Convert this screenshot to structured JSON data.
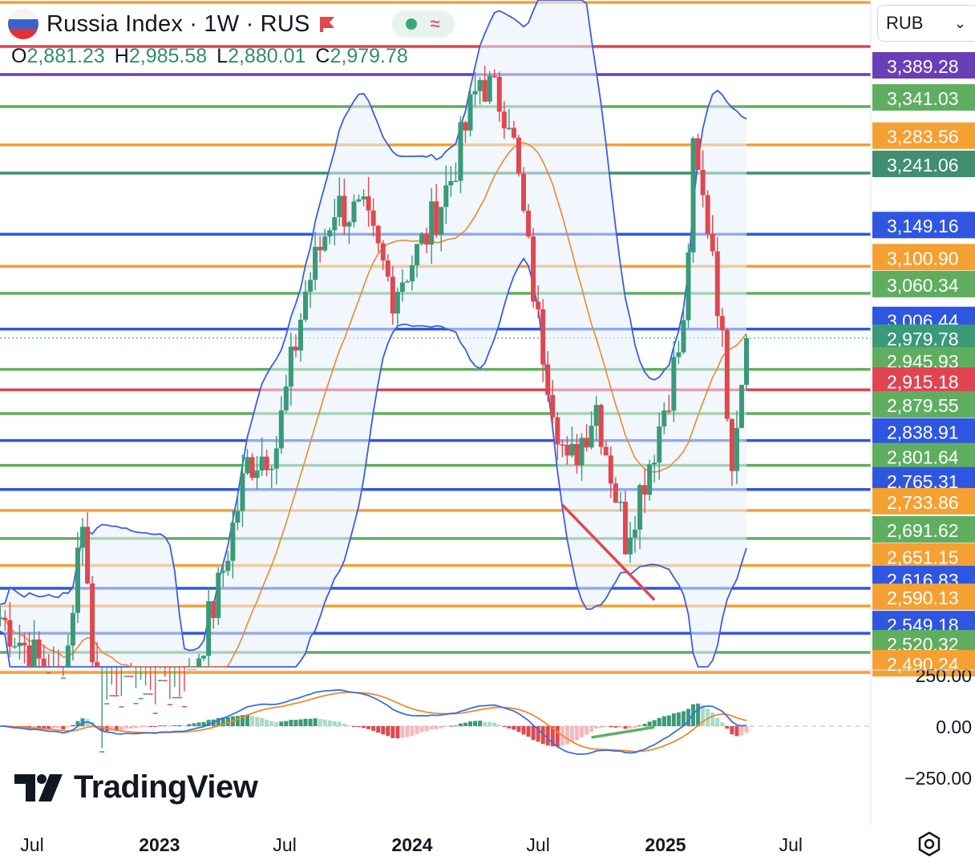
{
  "header": {
    "title": "Russia Index · 1W · RUS",
    "ohlc": [
      {
        "key": "O",
        "value": "2,881.23"
      },
      {
        "key": "H",
        "value": "2,985.58"
      },
      {
        "key": "L",
        "value": "2,880.01"
      },
      {
        "key": "C",
        "value": "2,979.78"
      }
    ],
    "currency": "RUB"
  },
  "colors": {
    "up": "#3a9a78",
    "down": "#e0484f",
    "bb": "#3b5ee0",
    "ma": "#f0882e",
    "orange_line": "#f5a033",
    "green_line": "#5fae5f",
    "blue_line": "#2f56e0",
    "red_line": "#e04450",
    "purple_line": "#6a3fb5",
    "macd_line": "#3b6fe8",
    "signal_line": "#f08a2a"
  },
  "icons": {
    "flag": "russia-flag-icon",
    "marker": "red-flag-icon",
    "settings": "gear-icon"
  },
  "logo_text": "TradingView",
  "chart_data": {
    "type": "candlestick",
    "price_axis": {
      "labels": [
        {
          "value": 3389.28,
          "text": "3,389.28",
          "color": "#6a3fb5"
        },
        {
          "value": 3341.03,
          "text": "3,341.03",
          "color": "#5fae5f"
        },
        {
          "value": 3283.56,
          "text": "3,283.56",
          "color": "#f5a033"
        },
        {
          "value": 3241.06,
          "text": "3,241.06",
          "color": "#3f8f70"
        },
        {
          "value": 3149.16,
          "text": "3,149.16",
          "color": "#2f56e0"
        },
        {
          "value": 3100.9,
          "text": "3,100.90",
          "color": "#f5a033"
        },
        {
          "value": 3060.34,
          "text": "3,060.34",
          "color": "#5fae5f"
        },
        {
          "value": 3006.44,
          "text": "3,006.44",
          "color": "#2f56e0"
        },
        {
          "value": 2979.78,
          "text": "2,979.78",
          "color": "#3a9a78"
        },
        {
          "value": 2945.93,
          "text": "2,945.93",
          "color": "#5fae5f"
        },
        {
          "value": 2915.18,
          "text": "2,915.18",
          "color": "#e04450"
        },
        {
          "value": 2879.55,
          "text": "2,879.55",
          "color": "#5fae5f"
        },
        {
          "value": 2838.91,
          "text": "2,838.91",
          "color": "#2f56e0"
        },
        {
          "value": 2801.64,
          "text": "2,801.64",
          "color": "#5fae5f"
        },
        {
          "value": 2765.31,
          "text": "2,765.31",
          "color": "#2f56e0"
        },
        {
          "value": 2733.86,
          "text": "2,733.86",
          "color": "#f5a033"
        },
        {
          "value": 2691.62,
          "text": "2,691.62",
          "color": "#5fae5f"
        },
        {
          "value": 2651.15,
          "text": "2,651.15",
          "color": "#f5a033"
        },
        {
          "value": 2616.83,
          "text": "2,616.83",
          "color": "#2f56e0"
        },
        {
          "value": 2590.13,
          "text": "2,590.13",
          "color": "#f5a033"
        },
        {
          "value": 2549.18,
          "text": "2,549.18",
          "color": "#2f56e0"
        },
        {
          "value": 2520.32,
          "text": "2,520.32",
          "color": "#5fae5f"
        },
        {
          "value": 2490.24,
          "text": "2,490.24",
          "color": "#f5a033"
        }
      ]
    },
    "macd_axis_labels": [
      "250.00",
      "0.00",
      "−250.00"
    ],
    "macd_range": [
      -250,
      250
    ],
    "time_labels": [
      {
        "text": "Jul",
        "bold": false,
        "date": "2022-07-01"
      },
      {
        "text": "2023",
        "bold": true,
        "date": "2023-01-01"
      },
      {
        "text": "Jul",
        "bold": false,
        "date": "2023-07-01"
      },
      {
        "text": "2024",
        "bold": true,
        "date": "2024-01-01"
      },
      {
        "text": "Jul",
        "bold": false,
        "date": "2024-07-01"
      },
      {
        "text": "2025",
        "bold": true,
        "date": "2025-01-01"
      },
      {
        "text": "Jul",
        "bold": false,
        "date": "2025-07-01"
      }
    ],
    "last_close": 2979.78,
    "series_close": [
      {
        "date": "2022-05-16",
        "close": 2560
      },
      {
        "date": "2022-07-04",
        "close": 2500
      },
      {
        "date": "2022-08-15",
        "close": 2450
      },
      {
        "date": "2022-09-12",
        "close": 2720
      },
      {
        "date": "2022-10-03",
        "close": 2380
      },
      {
        "date": "2022-11-14",
        "close": 2440
      },
      {
        "date": "2022-12-26",
        "close": 2430
      },
      {
        "date": "2023-02-06",
        "close": 2440
      },
      {
        "date": "2023-03-27",
        "close": 2600
      },
      {
        "date": "2023-05-08",
        "close": 2790
      },
      {
        "date": "2023-06-19",
        "close": 2820
      },
      {
        "date": "2023-07-31",
        "close": 3050
      },
      {
        "date": "2023-09-11",
        "close": 3180
      },
      {
        "date": "2023-10-23",
        "close": 3160
      },
      {
        "date": "2023-12-04",
        "close": 3050
      },
      {
        "date": "2024-01-15",
        "close": 3120
      },
      {
        "date": "2024-02-26",
        "close": 3220
      },
      {
        "date": "2024-04-08",
        "close": 3370
      },
      {
        "date": "2024-05-20",
        "close": 3320
      },
      {
        "date": "2024-07-01",
        "close": 3000
      },
      {
        "date": "2024-08-12",
        "close": 2780
      },
      {
        "date": "2024-09-23",
        "close": 2880
      },
      {
        "date": "2024-11-04",
        "close": 2680
      },
      {
        "date": "2024-12-16",
        "close": 2820
      },
      {
        "date": "2025-01-27",
        "close": 2990
      },
      {
        "date": "2025-02-10",
        "close": 3250
      },
      {
        "date": "2025-03-10",
        "close": 3120
      },
      {
        "date": "2025-04-07",
        "close": 2810
      },
      {
        "date": "2025-04-28",
        "close": 2979.78
      }
    ]
  }
}
